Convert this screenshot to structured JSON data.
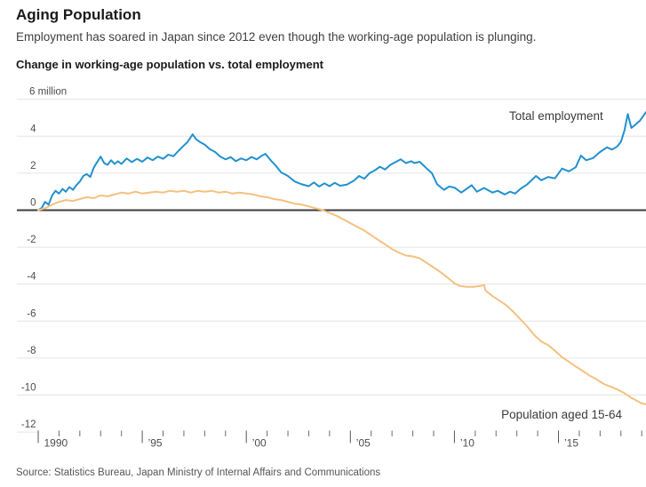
{
  "header": {
    "title": "Aging Population",
    "subtitle": "Employment has soared in Japan since 2012 even though the working-age population is plunging."
  },
  "source": "Source: Statistics Bureau, Japan Ministry of Internal Affairs and Communications",
  "colors": {
    "blue": "#2191cf",
    "orange": "#f4c17f",
    "grid": "#e4e4e4",
    "zero_line": "#3d3d3d",
    "tick": "#6b6b6b",
    "axis_text": "#4d4d4d"
  },
  "chart_data": {
    "type": "line",
    "title": "Change in working-age population vs. total employment",
    "unit_label": "million",
    "grid": "horizontal",
    "legend_position": "inline-annotations",
    "y_axis": {
      "range": [
        -12,
        6
      ],
      "ticks": [
        {
          "value": 6,
          "label": "6 million"
        },
        {
          "value": 4,
          "label": "4"
        },
        {
          "value": 2,
          "label": "2"
        },
        {
          "value": 0,
          "label": "0"
        },
        {
          "value": -2,
          "label": "-2"
        },
        {
          "value": -4,
          "label": "-4"
        },
        {
          "value": -6,
          "label": "-6"
        },
        {
          "value": -8,
          "label": "-8"
        },
        {
          "value": -10,
          "label": "-10"
        },
        {
          "value": -12,
          "label": "-12"
        }
      ]
    },
    "x_axis": {
      "range": [
        1989,
        2019.2
      ],
      "minor_tick_years_start": 1990,
      "minor_tick_years_end": 2019,
      "major_ticks": [
        {
          "year": 1990,
          "label": "1990"
        },
        {
          "year": 1995,
          "label": "’95"
        },
        {
          "year": 2000,
          "label": "’00"
        },
        {
          "year": 2005,
          "label": "’05"
        },
        {
          "year": 2010,
          "label": "’10"
        },
        {
          "year": 2015,
          "label": "’15"
        }
      ]
    },
    "series": [
      {
        "name": "Total employment",
        "color": "#2191cf",
        "points": [
          [
            1990.0,
            0
          ],
          [
            1990.17,
            0.12
          ],
          [
            1990.33,
            0.45
          ],
          [
            1990.5,
            0.3
          ],
          [
            1990.67,
            0.8
          ],
          [
            1990.83,
            1.05
          ],
          [
            1991.0,
            0.9
          ],
          [
            1991.17,
            1.15
          ],
          [
            1991.33,
            1.0
          ],
          [
            1991.5,
            1.25
          ],
          [
            1991.67,
            1.1
          ],
          [
            1991.83,
            1.35
          ],
          [
            1992.0,
            1.55
          ],
          [
            1992.17,
            1.85
          ],
          [
            1992.33,
            1.95
          ],
          [
            1992.5,
            1.8
          ],
          [
            1992.67,
            2.3
          ],
          [
            1992.83,
            2.6
          ],
          [
            1993.0,
            2.9
          ],
          [
            1993.17,
            2.55
          ],
          [
            1993.33,
            2.45
          ],
          [
            1993.5,
            2.7
          ],
          [
            1993.67,
            2.5
          ],
          [
            1993.83,
            2.65
          ],
          [
            1994.0,
            2.5
          ],
          [
            1994.25,
            2.8
          ],
          [
            1994.5,
            2.6
          ],
          [
            1994.75,
            2.78
          ],
          [
            1995.0,
            2.62
          ],
          [
            1995.25,
            2.85
          ],
          [
            1995.5,
            2.7
          ],
          [
            1995.75,
            2.9
          ],
          [
            1996.0,
            2.78
          ],
          [
            1996.25,
            3.0
          ],
          [
            1996.5,
            2.92
          ],
          [
            1996.75,
            3.22
          ],
          [
            1997.0,
            3.5
          ],
          [
            1997.17,
            3.68
          ],
          [
            1997.42,
            4.1
          ],
          [
            1997.58,
            3.85
          ],
          [
            1997.75,
            3.7
          ],
          [
            1998.0,
            3.55
          ],
          [
            1998.25,
            3.3
          ],
          [
            1998.5,
            3.15
          ],
          [
            1998.75,
            2.9
          ],
          [
            1999.0,
            2.75
          ],
          [
            1999.25,
            2.87
          ],
          [
            1999.5,
            2.65
          ],
          [
            1999.75,
            2.8
          ],
          [
            2000.0,
            2.7
          ],
          [
            2000.25,
            2.88
          ],
          [
            2000.5,
            2.75
          ],
          [
            2000.75,
            2.95
          ],
          [
            2000.92,
            3.05
          ],
          [
            2001.17,
            2.7
          ],
          [
            2001.42,
            2.4
          ],
          [
            2001.67,
            2.05
          ],
          [
            2002.0,
            1.85
          ],
          [
            2002.33,
            1.55
          ],
          [
            2002.67,
            1.4
          ],
          [
            2003.0,
            1.3
          ],
          [
            2003.25,
            1.5
          ],
          [
            2003.5,
            1.28
          ],
          [
            2003.75,
            1.45
          ],
          [
            2004.0,
            1.3
          ],
          [
            2004.25,
            1.48
          ],
          [
            2004.5,
            1.32
          ],
          [
            2004.83,
            1.38
          ],
          [
            2005.17,
            1.6
          ],
          [
            2005.42,
            1.85
          ],
          [
            2005.67,
            1.7
          ],
          [
            2005.92,
            2.0
          ],
          [
            2006.17,
            2.15
          ],
          [
            2006.42,
            2.35
          ],
          [
            2006.67,
            2.2
          ],
          [
            2006.92,
            2.45
          ],
          [
            2007.17,
            2.6
          ],
          [
            2007.42,
            2.75
          ],
          [
            2007.67,
            2.55
          ],
          [
            2007.92,
            2.65
          ],
          [
            2008.08,
            2.55
          ],
          [
            2008.33,
            2.62
          ],
          [
            2008.67,
            2.25
          ],
          [
            2008.92,
            2.0
          ],
          [
            2009.17,
            1.4
          ],
          [
            2009.5,
            1.1
          ],
          [
            2009.75,
            1.28
          ],
          [
            2010.0,
            1.22
          ],
          [
            2010.33,
            0.95
          ],
          [
            2010.58,
            1.15
          ],
          [
            2010.83,
            1.35
          ],
          [
            2011.08,
            1.0
          ],
          [
            2011.42,
            1.2
          ],
          [
            2011.83,
            0.95
          ],
          [
            2012.08,
            1.05
          ],
          [
            2012.42,
            0.85
          ],
          [
            2012.67,
            1.0
          ],
          [
            2012.92,
            0.9
          ],
          [
            2013.17,
            1.15
          ],
          [
            2013.5,
            1.4
          ],
          [
            2013.92,
            1.85
          ],
          [
            2014.17,
            1.62
          ],
          [
            2014.5,
            1.8
          ],
          [
            2014.83,
            1.72
          ],
          [
            2015.17,
            2.25
          ],
          [
            2015.5,
            2.1
          ],
          [
            2015.83,
            2.32
          ],
          [
            2016.08,
            2.95
          ],
          [
            2016.33,
            2.7
          ],
          [
            2016.67,
            2.82
          ],
          [
            2017.0,
            3.15
          ],
          [
            2017.33,
            3.4
          ],
          [
            2017.58,
            3.28
          ],
          [
            2017.83,
            3.45
          ],
          [
            2018.0,
            3.7
          ],
          [
            2018.17,
            4.3
          ],
          [
            2018.33,
            5.2
          ],
          [
            2018.5,
            4.45
          ],
          [
            2018.67,
            4.6
          ],
          [
            2018.92,
            4.85
          ],
          [
            2019.2,
            5.3
          ]
        ]
      },
      {
        "name": "Population aged 15-64",
        "color": "#f4c17f",
        "points": [
          [
            1990.0,
            0
          ],
          [
            1990.33,
            0.1
          ],
          [
            1990.67,
            0.3
          ],
          [
            1991.0,
            0.45
          ],
          [
            1991.33,
            0.55
          ],
          [
            1991.67,
            0.5
          ],
          [
            1992.0,
            0.6
          ],
          [
            1992.33,
            0.7
          ],
          [
            1992.67,
            0.65
          ],
          [
            1993.0,
            0.8
          ],
          [
            1993.33,
            0.75
          ],
          [
            1993.67,
            0.85
          ],
          [
            1994.0,
            0.95
          ],
          [
            1994.33,
            0.9
          ],
          [
            1994.67,
            1.0
          ],
          [
            1995.0,
            0.9
          ],
          [
            1995.33,
            0.95
          ],
          [
            1995.67,
            1.0
          ],
          [
            1996.0,
            0.95
          ],
          [
            1996.33,
            1.05
          ],
          [
            1996.67,
            1.0
          ],
          [
            1997.0,
            1.05
          ],
          [
            1997.33,
            0.95
          ],
          [
            1997.67,
            1.05
          ],
          [
            1998.0,
            1.0
          ],
          [
            1998.33,
            1.05
          ],
          [
            1998.67,
            0.95
          ],
          [
            1999.0,
            1.0
          ],
          [
            1999.33,
            0.9
          ],
          [
            1999.67,
            0.95
          ],
          [
            2000.0,
            0.9
          ],
          [
            2000.33,
            0.85
          ],
          [
            2000.67,
            0.75
          ],
          [
            2001.0,
            0.7
          ],
          [
            2001.33,
            0.6
          ],
          [
            2001.67,
            0.55
          ],
          [
            2002.0,
            0.45
          ],
          [
            2002.33,
            0.35
          ],
          [
            2002.67,
            0.3
          ],
          [
            2003.0,
            0.2
          ],
          [
            2003.33,
            0.1
          ],
          [
            2003.67,
            0.0
          ],
          [
            2004.0,
            -0.15
          ],
          [
            2004.33,
            -0.3
          ],
          [
            2004.67,
            -0.5
          ],
          [
            2005.0,
            -0.7
          ],
          [
            2005.33,
            -0.9
          ],
          [
            2005.67,
            -1.1
          ],
          [
            2006.0,
            -1.35
          ],
          [
            2006.33,
            -1.6
          ],
          [
            2006.67,
            -1.85
          ],
          [
            2007.0,
            -2.1
          ],
          [
            2007.33,
            -2.3
          ],
          [
            2007.67,
            -2.45
          ],
          [
            2008.0,
            -2.5
          ],
          [
            2008.33,
            -2.6
          ],
          [
            2008.67,
            -2.85
          ],
          [
            2009.0,
            -3.1
          ],
          [
            2009.33,
            -3.35
          ],
          [
            2009.67,
            -3.65
          ],
          [
            2010.0,
            -3.95
          ],
          [
            2010.25,
            -4.1
          ],
          [
            2010.58,
            -4.15
          ],
          [
            2010.92,
            -4.15
          ],
          [
            2011.25,
            -4.1
          ],
          [
            2011.42,
            -4.05
          ],
          [
            2011.5,
            -4.35
          ],
          [
            2011.83,
            -4.65
          ],
          [
            2012.17,
            -4.9
          ],
          [
            2012.5,
            -5.15
          ],
          [
            2012.83,
            -5.5
          ],
          [
            2013.17,
            -5.9
          ],
          [
            2013.5,
            -6.3
          ],
          [
            2013.83,
            -6.75
          ],
          [
            2014.17,
            -7.1
          ],
          [
            2014.5,
            -7.3
          ],
          [
            2014.83,
            -7.6
          ],
          [
            2015.17,
            -7.95
          ],
          [
            2015.5,
            -8.2
          ],
          [
            2015.83,
            -8.45
          ],
          [
            2016.17,
            -8.7
          ],
          [
            2016.5,
            -8.95
          ],
          [
            2016.83,
            -9.15
          ],
          [
            2017.17,
            -9.4
          ],
          [
            2017.5,
            -9.55
          ],
          [
            2017.83,
            -9.7
          ],
          [
            2018.17,
            -9.9
          ],
          [
            2018.5,
            -10.15
          ],
          [
            2018.83,
            -10.35
          ],
          [
            2019.0,
            -10.45
          ],
          [
            2019.2,
            -10.5
          ]
        ]
      }
    ]
  }
}
